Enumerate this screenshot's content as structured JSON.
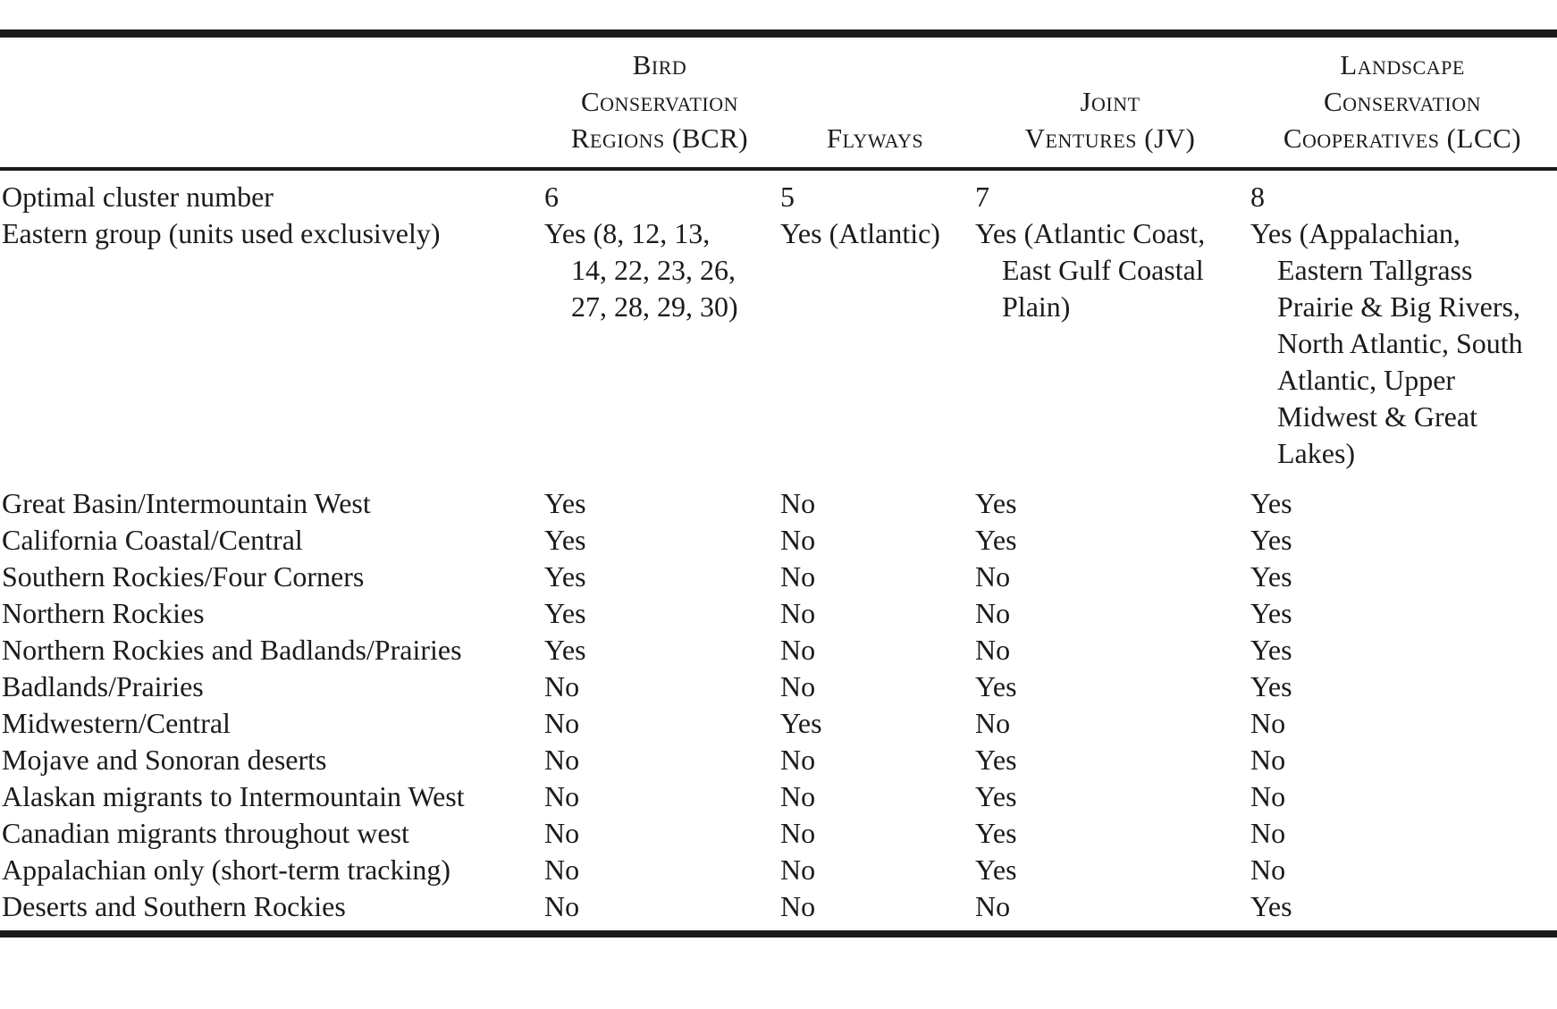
{
  "table": {
    "columns": [
      {
        "key": "bcr",
        "lines": [
          "Bird",
          "Conservation",
          "Regions (BCR)"
        ]
      },
      {
        "key": "flyways",
        "lines": [
          "Flyways"
        ]
      },
      {
        "key": "jv",
        "lines": [
          "Joint",
          "Ventures (JV)"
        ]
      },
      {
        "key": "lcc",
        "lines": [
          "Landscape",
          "Conservation",
          "Cooperatives (LCC)"
        ]
      }
    ],
    "rows": [
      {
        "label": "Optimal cluster number",
        "values": [
          "6",
          "5",
          "7",
          "8"
        ]
      },
      {
        "label": "Eastern group (units used exclusively)",
        "bcr_lines": [
          "Yes (8, 12, 13,",
          "14, 22, 23, 26,",
          "27, 28, 29, 30)"
        ],
        "flyways_lines": [
          "Yes (Atlantic)"
        ],
        "jv_lines": [
          "Yes (Atlantic Coast,",
          "East Gulf Coastal",
          "Plain)"
        ],
        "lcc_lines": [
          "Yes (Appalachian,",
          "Eastern Tallgrass",
          "Prairie & Big Rivers,",
          "North Atlantic, South",
          "Atlantic, Upper",
          "Midwest & Great",
          "Lakes)"
        ]
      },
      {
        "label": "Great Basin/Intermountain West",
        "values": [
          "Yes",
          "No",
          "Yes",
          "Yes"
        ]
      },
      {
        "label": "California Coastal/Central",
        "values": [
          "Yes",
          "No",
          "Yes",
          "Yes"
        ]
      },
      {
        "label": "Southern Rockies/Four Corners",
        "values": [
          "Yes",
          "No",
          "No",
          "Yes"
        ]
      },
      {
        "label": "Northern Rockies",
        "values": [
          "Yes",
          "No",
          "No",
          "Yes"
        ]
      },
      {
        "label": "Northern Rockies and Badlands/Prairies",
        "values": [
          "Yes",
          "No",
          "No",
          "Yes"
        ]
      },
      {
        "label": "Badlands/Prairies",
        "values": [
          "No",
          "No",
          "Yes",
          "Yes"
        ]
      },
      {
        "label": "Midwestern/Central",
        "values": [
          "No",
          "Yes",
          "No",
          "No"
        ]
      },
      {
        "label": "Mojave and Sonoran deserts",
        "values": [
          "No",
          "No",
          "Yes",
          "No"
        ]
      },
      {
        "label": "Alaskan migrants to Intermountain West",
        "values": [
          "No",
          "No",
          "Yes",
          "No"
        ]
      },
      {
        "label": "Canadian migrants throughout west",
        "values": [
          "No",
          "No",
          "Yes",
          "No"
        ]
      },
      {
        "label": "Appalachian only (short-term tracking)",
        "values": [
          "No",
          "No",
          "Yes",
          "No"
        ]
      },
      {
        "label": "Deserts and Southern Rockies",
        "values": [
          "No",
          "No",
          "No",
          "Yes"
        ]
      }
    ],
    "colors": {
      "text": "#1b1b1b",
      "rule": "#1a1a1a",
      "background": "#ffffff"
    }
  }
}
